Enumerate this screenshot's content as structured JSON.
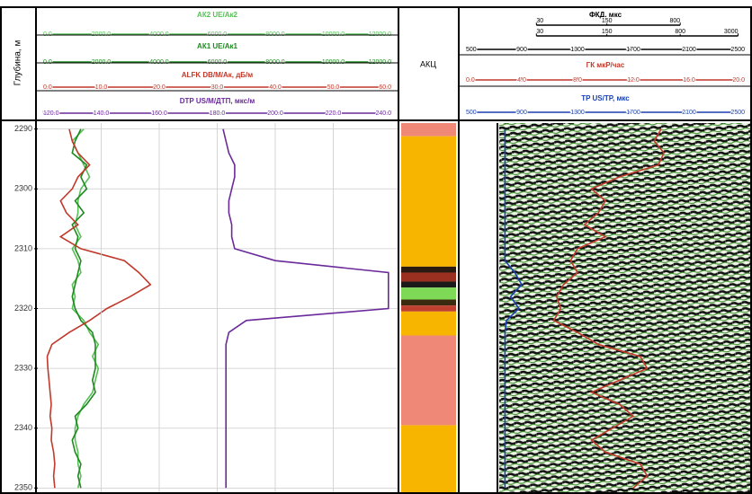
{
  "chart_data": {
    "type": "well-log",
    "y_label": "Глубина, м",
    "ylim": [
      2289,
      2351
    ],
    "yticks": [
      2290,
      2300,
      2310,
      2320,
      2330,
      2340,
      2350
    ],
    "depths": [
      2290,
      2292,
      2294,
      2296,
      2298,
      2300,
      2302,
      2304,
      2306,
      2308,
      2310,
      2312,
      2314,
      2316,
      2318,
      2320,
      2322,
      2324,
      2326,
      2328,
      2330,
      2332,
      2334,
      2336,
      2338,
      2340,
      2342,
      2344,
      2346,
      2348,
      2350
    ],
    "tracks": [
      {
        "blocks": [
          {
            "name": "АК2 UE/Ак2",
            "color": "#58c058",
            "scales": [
              {
                "xlim": [
                  0,
                  12000
                ],
                "xticks": [
                  {
                    "value": 0,
                    "label": "0.0"
                  },
                  {
                    "value": 2000,
                    "label": "2000.0"
                  },
                  {
                    "value": 4000,
                    "label": "4000.0"
                  },
                  {
                    "value": 6000,
                    "label": "6000.0"
                  },
                  {
                    "value": 8000,
                    "label": "8000.0"
                  },
                  {
                    "value": 10000,
                    "label": "10000.0"
                  },
                  {
                    "value": 12000,
                    "label": "12000.0"
                  }
                ]
              }
            ],
            "values": [
              1400,
              1000,
              1200,
              1400,
              1600,
              1300,
              1200,
              1200,
              1100,
              1300,
              1000,
              1200,
              1300,
              1000,
              1100,
              1000,
              1400,
              1600,
              1900,
              1700,
              1900,
              1800,
              1700,
              1400,
              1200,
              1100,
              1100,
              1200,
              1200,
              1300,
              1200
            ]
          },
          {
            "name": "АК1 UE/Ак1",
            "color": "#1e8a1e",
            "scales": [
              {
                "xlim": [
                  0,
                  12000
                ],
                "xticks": [
                  {
                    "value": 0,
                    "label": "0.0"
                  },
                  {
                    "value": 2000,
                    "label": "2000.0"
                  },
                  {
                    "value": 4000,
                    "label": "4000.0"
                  },
                  {
                    "value": 6000,
                    "label": "6000.0"
                  },
                  {
                    "value": 8000,
                    "label": "8000.0"
                  },
                  {
                    "value": 10000,
                    "label": "10000.0"
                  },
                  {
                    "value": 12000,
                    "label": "12000.0"
                  }
                ]
              }
            ],
            "values": [
              1300,
              1100,
              1000,
              1500,
              1300,
              1500,
              1100,
              1400,
              1000,
              1200,
              1100,
              1300,
              1200,
              1100,
              1000,
              1100,
              1300,
              1700,
              1800,
              1800,
              1800,
              1700,
              1800,
              1500,
              1100,
              1200,
              1000,
              1100,
              1300,
              1200,
              1300
            ]
          },
          {
            "name": "ALFK DB/M/Ак, дБ/м",
            "color": "#c0392b",
            "scales": [
              {
                "xlim": [
                  0,
                  60
                ],
                "xticks": [
                  {
                    "value": 0,
                    "label": "0.0"
                  },
                  {
                    "value": 10,
                    "label": "10.0"
                  },
                  {
                    "value": 20,
                    "label": "20.0"
                  },
                  {
                    "value": 30,
                    "label": "30.0"
                  },
                  {
                    "value": 40,
                    "label": "40.0"
                  },
                  {
                    "value": 50,
                    "label": "50.0"
                  },
                  {
                    "value": 60,
                    "label": "60.0"
                  }
                ]
              }
            ],
            "values": [
              4.5,
              5,
              6,
              8,
              6,
              5,
              3,
              4,
              6,
              3,
              6.5,
              14,
              16.5,
              18.5,
              15,
              11,
              8,
              4.5,
              1.5,
              0.7,
              0.8,
              1,
              1.2,
              1.4,
              1.2,
              1.5,
              1.4,
              1.8,
              2,
              1.8,
              2
            ]
          },
          {
            "name": "DTP US/M/ДТП, мкс/м",
            "color": "#6a2a9a",
            "scales": [
              {
                "xlim": [
                  120,
                  240
                ],
                "xticks": [
                  {
                    "value": 120,
                    "label": "120.0"
                  },
                  {
                    "value": 140,
                    "label": "140.0"
                  },
                  {
                    "value": 160,
                    "label": "160.0"
                  },
                  {
                    "value": 180,
                    "label": "180.0"
                  },
                  {
                    "value": 200,
                    "label": "200.0"
                  },
                  {
                    "value": 220,
                    "label": "220.0"
                  },
                  {
                    "value": 240,
                    "label": "240.0"
                  }
                ]
              }
            ],
            "values": [
              182,
              183,
              184,
              186,
              186,
              185,
              184,
              184,
              185,
              185,
              186,
              200,
              239,
              239,
              239,
              239,
              190,
              184,
              183,
              183,
              183,
              183,
              183,
              183,
              183,
              183,
              183,
              183,
              183,
              183,
              183
            ]
          }
        ]
      },
      {
        "title": "АКЦ",
        "bands": [
          {
            "top": 2289,
            "bottom": 2291.2,
            "color": "#f08878"
          },
          {
            "top": 2291.2,
            "bottom": 2313,
            "color": "#f7b500"
          },
          {
            "top": 2313,
            "bottom": 2314,
            "color": "#2a1a10"
          },
          {
            "top": 2314,
            "bottom": 2315.5,
            "color": "#9c3020"
          },
          {
            "top": 2315.5,
            "bottom": 2316.5,
            "color": "#1a1a1a"
          },
          {
            "top": 2316.5,
            "bottom": 2318.5,
            "color": "#7ed957"
          },
          {
            "top": 2318.5,
            "bottom": 2319.5,
            "color": "#3a2a10"
          },
          {
            "top": 2319.5,
            "bottom": 2320.5,
            "color": "#c04030"
          },
          {
            "top": 2320.5,
            "bottom": 2324.5,
            "color": "#f7b500"
          },
          {
            "top": 2324.5,
            "bottom": 2339.5,
            "color": "#f08878"
          },
          {
            "top": 2339.5,
            "bottom": 2351,
            "color": "#f7b500"
          }
        ]
      },
      {
        "blocks": [
          {
            "name": "ФКД, мкс",
            "color": "#000000",
            "scales": [
              {
                "log": true,
                "xlim": [
                  6,
                  3500
                ],
                "xticks": [
                  30,
                  150,
                  800
                ]
              },
              {
                "log": true,
                "xlim": [
                  6,
                  3500
                ],
                "xticks": [
                  30,
                  150,
                  800,
                  3000
                ]
              },
              {
                "xlim": [
                  500,
                  2500
                ],
                "xticks": [
                  500,
                  900,
                  1300,
                  1700,
                  2100,
                  2500
                ]
              }
            ]
          },
          {
            "name": "ГК мкР/час",
            "color": "#c0392b",
            "scales": [
              {
                "xlim": [
                  0,
                  20
                ],
                "xticks": [
                  {
                    "value": 0,
                    "label": "0.0"
                  },
                  {
                    "value": 4,
                    "label": "4.0"
                  },
                  {
                    "value": 8,
                    "label": "8.0"
                  },
                  {
                    "value": 12,
                    "label": "12.0"
                  },
                  {
                    "value": 16,
                    "label": "16.0"
                  },
                  {
                    "value": 20,
                    "label": "20.0"
                  }
                ]
              }
            ],
            "values": [
              14,
              13.5,
              14.2,
              13.8,
              11,
              9,
              10,
              9.5,
              8.5,
              10,
              8,
              7.5,
              8,
              7,
              6.5,
              6.8,
              6.3,
              8,
              9.5,
              12.5,
              13,
              11,
              9,
              11,
              12,
              10.5,
              9,
              10,
              12.5,
              13,
              12
            ]
          },
          {
            "name": "TP US/TP, мкс",
            "color": "#1a3fb0",
            "scales": [
              {
                "xlim": [
                  500,
                  2500
                ],
                "xticks": [
                  500,
                  900,
                  1300,
                  1700,
                  2100,
                  2500
                ]
              }
            ],
            "values": [
              780,
              780,
              780,
              780,
              780,
              780,
              780,
              780,
              780,
              780,
              780,
              780,
              850,
              900,
              820,
              880,
              790,
              780,
              780,
              780,
              780,
              780,
              780,
              780,
              780,
              780,
              780,
              780,
              780,
              780,
              780
            ]
          }
        ]
      }
    ]
  }
}
